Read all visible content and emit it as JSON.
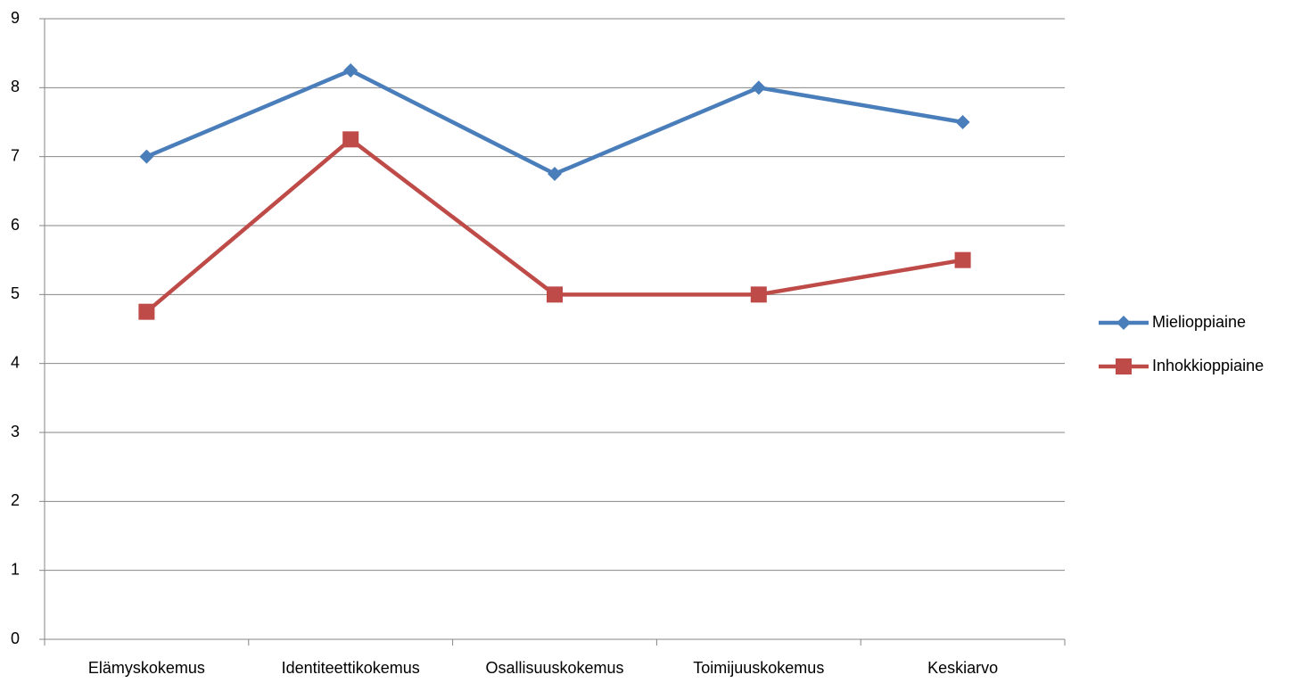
{
  "chart_data": {
    "type": "line",
    "categories": [
      "Elämyskokemus",
      "Identiteettikokemus",
      "Osallisuuskokemus",
      "Toimijuuskokemus",
      "Keskiarvo"
    ],
    "series": [
      {
        "name": "Mielioppiaine",
        "color": "#4a7ebb",
        "marker": "diamond",
        "values": [
          7,
          8.25,
          6.75,
          8,
          7.5
        ]
      },
      {
        "name": "Inhokkioppiaine",
        "color": "#be4b48",
        "marker": "square",
        "values": [
          4.75,
          7.25,
          5,
          5,
          5.5
        ]
      }
    ],
    "ylim": [
      0,
      9
    ],
    "yticks": [
      0,
      1,
      2,
      3,
      4,
      5,
      6,
      7,
      8,
      9
    ],
    "grid": true,
    "legend": "right"
  }
}
